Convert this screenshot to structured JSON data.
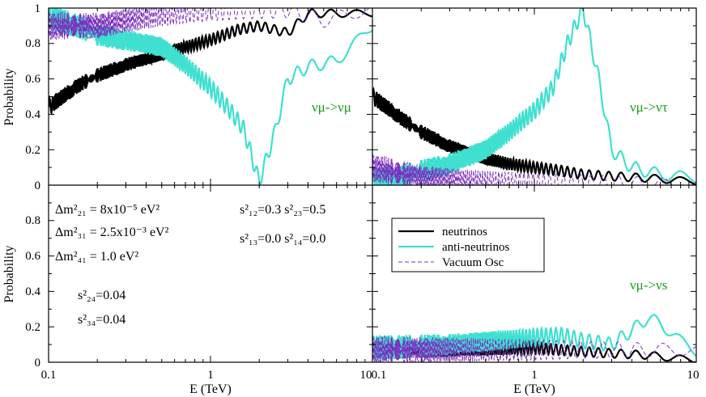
{
  "figure": {
    "ylabel": "Probability",
    "xlabel": "E (TeV)",
    "y_ticks": [
      "0",
      "0.2",
      "0.4",
      "0.6",
      "0.8",
      "1"
    ],
    "x_ticks_left": [
      "0.1",
      "1",
      "10"
    ],
    "x_ticks_right": [
      "0.1",
      "1",
      "10"
    ],
    "params": {
      "dm21": "Δm²₂₁ = 8x10⁻⁵ eV²",
      "dm31": "Δm²₃₁ = 2.5x10⁻³ eV²",
      "dm41": "Δm²₄₁ = 1.0 eV²",
      "s24": "s²₂₄=0.04",
      "s34": "s²₃₄=0.04",
      "s12_s23": "s²₁₂=0.3  s²₂₃=0.5",
      "s13_s14": "s²₁₃=0.0  s²₁₄=0.0"
    },
    "panel_labels": {
      "mumu": "νμ->νμ",
      "mutau": "νμ->ντ",
      "mus": "νμ->νs"
    },
    "colors": {
      "neutrinos": "#000000",
      "anti": "#40e0d0",
      "vacuum": "#7b2fbe",
      "label_green": "#1a9e1a"
    }
  },
  "chart_data": [
    {
      "type": "line",
      "panel": "top-left",
      "label": "νμ->νμ",
      "xscale": "log",
      "xlim": [
        0.1,
        10
      ],
      "ylim": [
        0,
        1
      ],
      "series": [
        {
          "name": "neutrinos",
          "x": [
            0.1,
            0.15,
            0.2,
            0.3,
            0.5,
            0.7,
            1,
            1.5,
            2,
            3,
            4,
            6,
            10
          ],
          "y": [
            0.44,
            0.56,
            0.62,
            0.68,
            0.74,
            0.78,
            0.82,
            0.88,
            0.9,
            0.86,
            0.97,
            0.97,
            0.97
          ]
        },
        {
          "name": "anti-neutrinos",
          "x": [
            0.1,
            0.15,
            0.2,
            0.3,
            0.5,
            0.7,
            1,
            1.3,
            1.6,
            2,
            2.5,
            3,
            4,
            6,
            10
          ],
          "y": [
            0.95,
            0.9,
            0.85,
            0.82,
            0.78,
            0.68,
            0.55,
            0.43,
            0.32,
            0.02,
            0.3,
            0.6,
            0.67,
            0.7,
            0.9
          ]
        },
        {
          "name": "Vacuum Osc",
          "x": [
            0.1,
            0.2,
            0.4,
            0.8,
            1.5,
            3,
            5,
            10
          ],
          "y": [
            0.9,
            0.9,
            0.95,
            0.98,
            0.99,
            0.99,
            0.93,
            1.0
          ]
        }
      ]
    },
    {
      "type": "line",
      "panel": "top-right",
      "label": "νμ->ντ",
      "xscale": "log",
      "xlim": [
        0.1,
        10
      ],
      "ylim": [
        0,
        1
      ],
      "series": [
        {
          "name": "neutrinos",
          "x": [
            0.1,
            0.15,
            0.2,
            0.3,
            0.5,
            0.7,
            1,
            1.5,
            2,
            3,
            5,
            10
          ],
          "y": [
            0.5,
            0.38,
            0.3,
            0.22,
            0.15,
            0.12,
            0.1,
            0.08,
            0.06,
            0.05,
            0.04,
            0.02
          ]
        },
        {
          "name": "anti-neutrinos",
          "x": [
            0.1,
            0.15,
            0.2,
            0.3,
            0.5,
            0.7,
            1,
            1.3,
            1.6,
            2,
            2.5,
            3,
            4,
            6,
            10
          ],
          "y": [
            0.02,
            0.05,
            0.08,
            0.12,
            0.2,
            0.3,
            0.42,
            0.55,
            0.8,
            1.0,
            0.6,
            0.2,
            0.1,
            0.06,
            0.04
          ]
        },
        {
          "name": "Vacuum Osc",
          "x": [
            0.1,
            0.2,
            0.4,
            1,
            3,
            10
          ],
          "y": [
            0.1,
            0.04,
            0.02,
            0.01,
            0.01,
            0.0
          ]
        }
      ]
    },
    {
      "type": "line",
      "panel": "bottom-right",
      "label": "νμ->νs",
      "xscale": "log",
      "xlim": [
        0.1,
        10
      ],
      "ylim": [
        0,
        1
      ],
      "legend": {
        "position": "upper-center",
        "entries": [
          "neutrinos",
          "anti-neutrinos",
          "Vacuum Osc"
        ]
      },
      "series": [
        {
          "name": "neutrinos",
          "x": [
            0.1,
            0.3,
            1,
            2,
            3,
            5,
            10
          ],
          "y": [
            0.06,
            0.07,
            0.08,
            0.06,
            0.05,
            0.04,
            0.01
          ]
        },
        {
          "name": "anti-neutrinos",
          "x": [
            0.1,
            0.3,
            1,
            1.5,
            2,
            3,
            4,
            5,
            6,
            8,
            10
          ],
          "y": [
            0.08,
            0.1,
            0.14,
            0.15,
            0.12,
            0.1,
            0.18,
            0.25,
            0.22,
            0.12,
            0.06
          ]
        },
        {
          "name": "Vacuum Osc",
          "x": [
            0.1,
            0.3,
            1,
            3,
            10
          ],
          "y": [
            0.07,
            0.07,
            0.07,
            0.07,
            0.07
          ]
        }
      ]
    }
  ]
}
